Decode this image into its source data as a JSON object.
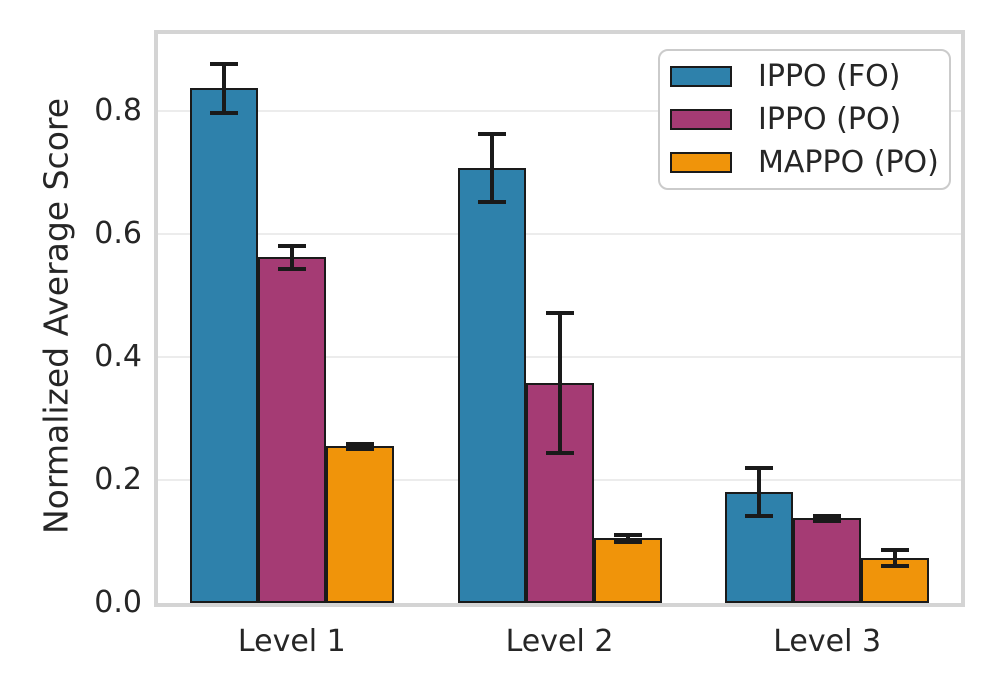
{
  "chart_data": {
    "type": "bar",
    "title": "",
    "xlabel": "",
    "ylabel": "Normalized Average Score",
    "categories": [
      "Level 1",
      "Level 2",
      "Level 3"
    ],
    "series": [
      {
        "name": "IPPO (FO)",
        "color": "#2e81ab",
        "values": [
          0.837,
          0.707,
          0.18
        ],
        "errors": [
          0.04,
          0.055,
          0.039
        ]
      },
      {
        "name": "IPPO (PO)",
        "color": "#a53b74",
        "values": [
          0.562,
          0.358,
          0.138
        ],
        "errors": [
          0.019,
          0.114,
          0.004
        ]
      },
      {
        "name": "MAPPO (PO)",
        "color": "#f0940a",
        "values": [
          0.255,
          0.105,
          0.073
        ],
        "errors": [
          0.004,
          0.006,
          0.013
        ]
      }
    ],
    "ylim": [
      0,
      0.925
    ],
    "yticks": [
      0.0,
      0.2,
      0.4,
      0.6,
      0.8
    ],
    "ytick_labels": [
      "0.0",
      "0.2",
      "0.4",
      "0.6",
      "0.8"
    ],
    "grid": true,
    "legend_position": "upper right",
    "bar_edge_color": "#1a1a1a",
    "error_bar_color": "#1a1a1a",
    "grid_color": "#ececec",
    "spine_color": "#d4d4d4",
    "text_color": "#262626",
    "background_color": "#ffffff"
  }
}
